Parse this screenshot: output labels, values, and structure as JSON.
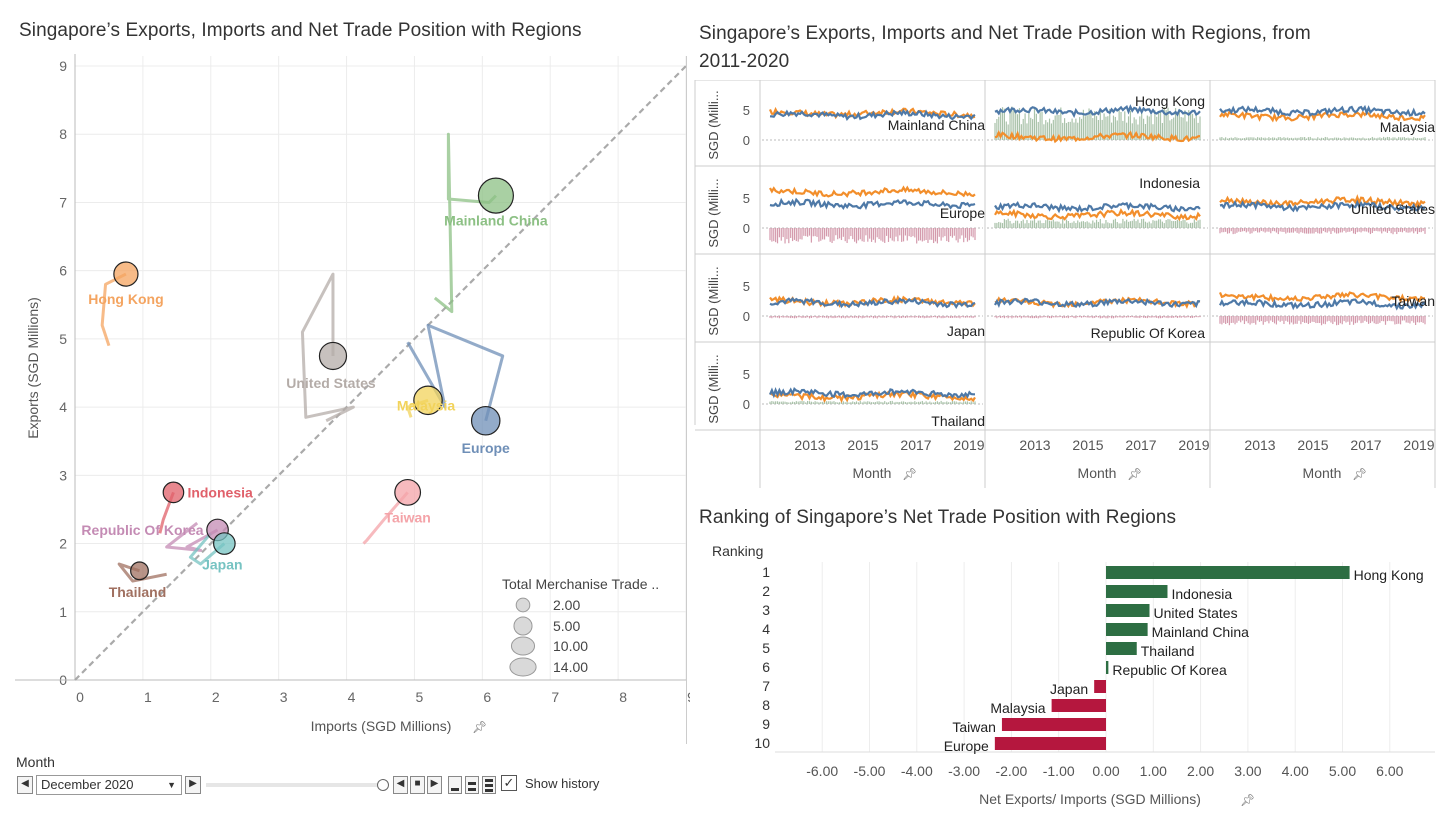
{
  "scatter": {
    "title": "Singapore’s  Exports, Imports and Net Trade Position with Regions",
    "xlabel": "Imports (SGD Millions)",
    "ylabel": "Exports (SGD Millions)",
    "legend_title": "Total Merchanise Trade ..",
    "legend_sizes": [
      "2.00",
      "5.00",
      "10.00",
      "14.00"
    ]
  },
  "small_multiples": {
    "title_line1": "Singapore’s  Exports, Imports and Net Trade Position with Regions, from",
    "title_line2": "2011-2020",
    "row_label": "SGD (Milli...",
    "x_ticks": [
      "2013",
      "2015",
      "2017",
      "2019"
    ],
    "xlabel": "Month",
    "y_ticks": [
      "5",
      "0"
    ],
    "panels": [
      "Mainland China",
      "Hong Kong",
      "Malaysia",
      "Europe",
      "Indonesia",
      "United States",
      "Japan",
      "Republic Of Korea",
      "Taiwan",
      "Thailand"
    ]
  },
  "ranking": {
    "title": "Ranking of Singapore’s Net Trade Position with Regions",
    "ranking_header": "Ranking",
    "xlabel": "Net Exports/ Imports (SGD Millions)"
  },
  "controls": {
    "month_label": "Month",
    "month_value": "December 2020",
    "show_history_label": "Show history",
    "show_history_checked": true
  },
  "colors": {
    "exports_line": "#4e79a7",
    "imports_line": "#f28e2b",
    "positive_bar": "#2d6e43",
    "negative_bar": "#b5173e"
  },
  "chart_data": [
    {
      "type": "scatter",
      "title": "Singapore’s  Exports, Imports and Net Trade Position with Regions",
      "xlabel": "Imports (SGD Millions)",
      "ylabel": "Exports (SGD Millions)",
      "xlim": [
        0,
        9
      ],
      "ylim": [
        0,
        9
      ],
      "x_ticks": [
        0,
        1,
        2,
        3,
        4,
        5,
        6,
        7,
        8,
        9
      ],
      "y_ticks": [
        0,
        1,
        2,
        3,
        4,
        5,
        6,
        7,
        8,
        9
      ],
      "grid": true,
      "reference_line": "y = x",
      "points": [
        {
          "name": "Mainland China",
          "x": 6.2,
          "y": 7.1,
          "size": 14.0,
          "color": "#8cc084",
          "history": [
            [
              6.2,
              7.1
            ],
            [
              6.1,
              7.0
            ],
            [
              5.5,
              7.05
            ],
            [
              5.5,
              8.0
            ],
            [
              5.55,
              5.4
            ],
            [
              5.3,
              5.6
            ]
          ]
        },
        {
          "name": "Hong Kong",
          "x": 0.75,
          "y": 5.95,
          "size": 5.0,
          "color": "#f4a460",
          "history": [
            [
              0.75,
              5.95
            ],
            [
              0.45,
              5.8
            ],
            [
              0.4,
              5.2
            ],
            [
              0.5,
              4.9
            ]
          ]
        },
        {
          "name": "United States",
          "x": 3.8,
          "y": 4.75,
          "size": 7.0,
          "color": "#b4aca8",
          "history": [
            [
              3.8,
              4.75
            ],
            [
              3.8,
              5.95
            ],
            [
              3.35,
              5.1
            ],
            [
              3.4,
              3.85
            ],
            [
              4.1,
              4.0
            ],
            [
              3.7,
              3.8
            ]
          ]
        },
        {
          "name": "Malaysia",
          "x": 5.2,
          "y": 4.1,
          "size": 8.0,
          "color": "#f2d35b",
          "history": [
            [
              5.2,
              4.1
            ],
            [
              4.9,
              4.0
            ],
            [
              4.95,
              3.85
            ]
          ]
        },
        {
          "name": "Europe",
          "x": 6.05,
          "y": 3.8,
          "size": 8.0,
          "color": "#6f8fb7",
          "history": [
            [
              6.05,
              3.8
            ],
            [
              6.3,
              4.75
            ],
            [
              5.2,
              5.2
            ],
            [
              5.45,
              4.0
            ],
            [
              4.9,
              4.95
            ]
          ]
        },
        {
          "name": "Taiwan",
          "x": 4.9,
          "y": 2.75,
          "size": 6.0,
          "color": "#f4a3a8",
          "history": [
            [
              4.9,
              2.75
            ],
            [
              4.55,
              2.35
            ],
            [
              4.3,
              2.05
            ],
            [
              4.25,
              2.0
            ]
          ]
        },
        {
          "name": "Indonesia",
          "x": 1.45,
          "y": 2.75,
          "size": 3.0,
          "color": "#e0606a",
          "history": [
            [
              1.45,
              2.75
            ],
            [
              1.3,
              2.35
            ],
            [
              1.25,
              2.15
            ]
          ]
        },
        {
          "name": "Republic Of Korea",
          "x": 2.1,
          "y": 2.2,
          "size": 3.5,
          "color": "#c48bb4",
          "history": [
            [
              2.1,
              2.2
            ],
            [
              1.65,
              1.95
            ],
            [
              1.85,
              1.9
            ],
            [
              1.35,
              1.95
            ],
            [
              1.8,
              2.3
            ]
          ]
        },
        {
          "name": "Japan",
          "x": 2.2,
          "y": 2.0,
          "size": 3.5,
          "color": "#76c3c2",
          "history": [
            [
              2.2,
              2.0
            ],
            [
              1.85,
              1.7
            ],
            [
              1.7,
              1.8
            ],
            [
              2.0,
              2.15
            ]
          ]
        },
        {
          "name": "Thailand",
          "x": 0.95,
          "y": 1.6,
          "size": 1.8,
          "color": "#a07060",
          "history": [
            [
              0.95,
              1.6
            ],
            [
              0.65,
              1.7
            ],
            [
              0.85,
              1.45
            ],
            [
              1.35,
              1.55
            ]
          ]
        }
      ]
    },
    {
      "type": "bar",
      "title": "Ranking of Singapore’s Net Trade Position with Regions",
      "xlabel": "Net Exports/ Imports (SGD Millions)",
      "xlim": [
        -7,
        7
      ],
      "x_ticks": [
        "-6.00",
        "-5.00",
        "-4.00",
        "-3.00",
        "-2.00",
        "-1.00",
        "0.00",
        "1.00",
        "2.00",
        "3.00",
        "4.00",
        "5.00",
        "6.00"
      ],
      "categories": [
        "Hong Kong",
        "Indonesia",
        "United States",
        "Mainland China",
        "Thailand",
        "Republic Of Korea",
        "Japan",
        "Malaysia",
        "Taiwan",
        "Europe"
      ],
      "ranks": [
        "1",
        "2",
        "3",
        "4",
        "5",
        "6",
        "7",
        "8",
        "9",
        "10"
      ],
      "values": [
        5.15,
        1.3,
        0.92,
        0.88,
        0.65,
        0.05,
        -0.25,
        -1.15,
        -2.2,
        -2.35
      ]
    }
  ]
}
